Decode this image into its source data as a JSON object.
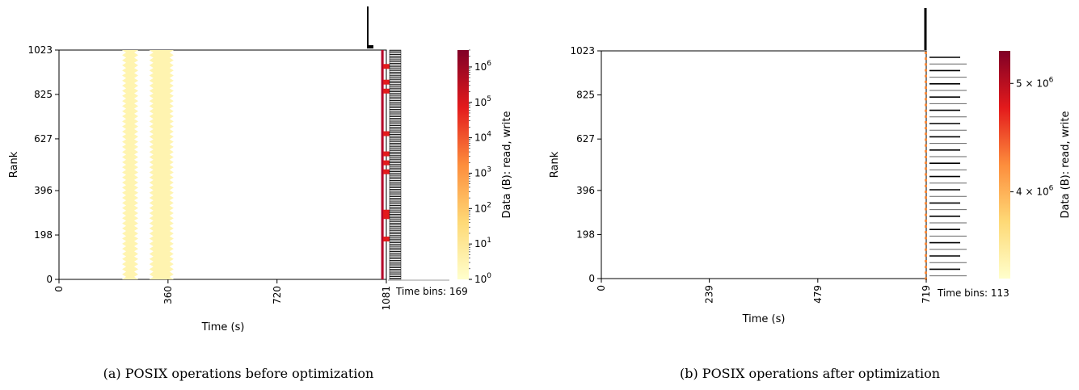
{
  "colormap": {
    "low": "#ffffcc",
    "mid_low": "#fed976",
    "mid": "#fd8d3c",
    "mid_high": "#e31a1c",
    "high": "#800026"
  },
  "chart_data": [
    {
      "type": "heatmap",
      "caption": "(a) POSIX operations before optimization",
      "xlabel": "Time (s)",
      "ylabel": "Rank",
      "xlim": [
        0,
        1081
      ],
      "ylim": [
        0,
        1023
      ],
      "x_ticks": [
        "0",
        "360",
        "720",
        "1081"
      ],
      "x_tick_values": [
        0,
        360,
        720,
        1081
      ],
      "y_ticks": [
        "0",
        "198",
        "396",
        "627",
        "825",
        "1023"
      ],
      "y_tick_values": [
        0,
        198,
        396,
        627,
        825,
        1023
      ],
      "time_bins_label": "Time bins: 169",
      "colorbar": {
        "label": "Data (B): read, write",
        "scale": "log",
        "range": [
          1,
          3000000
        ],
        "ticks": [
          {
            "base": "10",
            "exp": "0",
            "value": 1
          },
          {
            "base": "10",
            "exp": "1",
            "value": 10
          },
          {
            "base": "10",
            "exp": "2",
            "value": 100
          },
          {
            "base": "10",
            "exp": "3",
            "value": 1000
          },
          {
            "base": "10",
            "exp": "4",
            "value": 10000
          },
          {
            "base": "10",
            "exp": "5",
            "value": 100000
          },
          {
            "base": "10",
            "exp": "6",
            "value": 1000000
          }
        ]
      },
      "activity_bands": [
        {
          "t_start": 215,
          "t_end": 255,
          "rank_start": 0,
          "rank_end": 1023,
          "level": 1
        },
        {
          "t_start": 305,
          "t_end": 372,
          "rank_start": 0,
          "rank_end": 1023,
          "level": 1
        }
      ],
      "final_burst": {
        "t": 1068,
        "rank_start": 0,
        "rank_end": 1023,
        "level": "high"
      }
    },
    {
      "type": "heatmap",
      "caption": "(b) POSIX operations after optimization",
      "xlabel": "Time (s)",
      "ylabel": "Rank",
      "xlim": [
        0,
        719
      ],
      "ylim": [
        0,
        1023
      ],
      "x_ticks": [
        "0",
        "239",
        "479",
        "719"
      ],
      "x_tick_values": [
        0,
        239,
        479,
        719
      ],
      "y_ticks": [
        "0",
        "198",
        "396",
        "627",
        "825",
        "1023"
      ],
      "y_tick_values": [
        0,
        198,
        396,
        627,
        825,
        1023
      ],
      "time_bins_label": "Time bins: 113",
      "colorbar": {
        "label": "Data (B): read, write",
        "scale": "linear",
        "range": [
          3200000,
          5300000
        ],
        "ticks": [
          {
            "base": "4 × 10",
            "exp": "6",
            "value": 4000000
          },
          {
            "base": "5 × 10",
            "exp": "6",
            "value": 5000000
          }
        ]
      },
      "activity_bands": [],
      "final_burst": {
        "t": 719,
        "rank_start": 0,
        "rank_end": 1023,
        "level": "mid"
      }
    }
  ]
}
